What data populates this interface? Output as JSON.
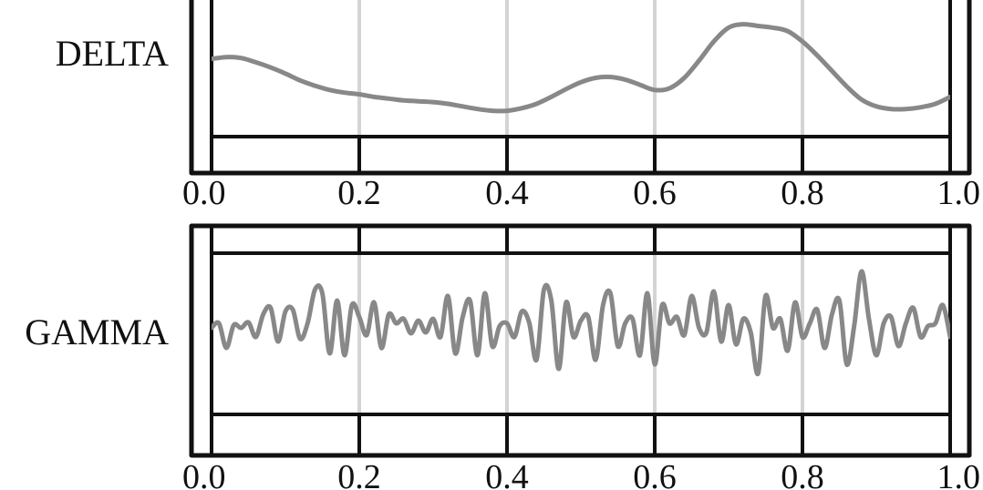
{
  "chart_data": [
    {
      "type": "line",
      "ylabel": "DELTA",
      "xlim": [
        0.0,
        1.0
      ],
      "x_ticks": [
        "0.0",
        "0.2",
        "0.4",
        "0.6",
        "0.8",
        "1.0"
      ],
      "grid": "vertical",
      "series": [
        {
          "color": "#888888",
          "x": [
            0.0,
            0.02,
            0.04,
            0.06,
            0.08,
            0.1,
            0.12,
            0.14,
            0.16,
            0.18,
            0.2,
            0.22,
            0.24,
            0.26,
            0.28,
            0.3,
            0.32,
            0.34,
            0.36,
            0.38,
            0.4,
            0.42,
            0.44,
            0.46,
            0.48,
            0.5,
            0.52,
            0.54,
            0.56,
            0.58,
            0.6,
            0.62,
            0.64,
            0.66,
            0.68,
            0.7,
            0.72,
            0.74,
            0.76,
            0.78,
            0.8,
            0.82,
            0.84,
            0.86,
            0.88,
            0.9,
            0.92,
            0.94,
            0.96,
            0.98,
            1.0
          ],
          "y": [
            0.72,
            0.74,
            0.73,
            0.68,
            0.62,
            0.55,
            0.47,
            0.41,
            0.36,
            0.33,
            0.31,
            0.28,
            0.26,
            0.24,
            0.23,
            0.22,
            0.2,
            0.17,
            0.14,
            0.12,
            0.12,
            0.15,
            0.2,
            0.28,
            0.37,
            0.45,
            0.5,
            0.51,
            0.48,
            0.42,
            0.36,
            0.38,
            0.5,
            0.7,
            0.92,
            1.08,
            1.12,
            1.1,
            1.08,
            1.04,
            0.92,
            0.76,
            0.58,
            0.4,
            0.25,
            0.17,
            0.14,
            0.14,
            0.16,
            0.2,
            0.28
          ]
        }
      ]
    },
    {
      "type": "line",
      "ylabel": "GAMMA",
      "xlim": [
        0.0,
        1.0
      ],
      "x_ticks": [
        "0.0",
        "0.2",
        "0.4",
        "0.6",
        "0.8",
        "1.0"
      ],
      "grid": "vertical",
      "series": [
        {
          "color": "#888888",
          "x": [
            0.0,
            0.01,
            0.02,
            0.03,
            0.04,
            0.05,
            0.06,
            0.07,
            0.08,
            0.09,
            0.1,
            0.11,
            0.12,
            0.13,
            0.14,
            0.15,
            0.16,
            0.17,
            0.18,
            0.19,
            0.2,
            0.21,
            0.22,
            0.23,
            0.24,
            0.25,
            0.26,
            0.27,
            0.28,
            0.29,
            0.3,
            0.31,
            0.32,
            0.33,
            0.34,
            0.35,
            0.36,
            0.37,
            0.38,
            0.39,
            0.4,
            0.41,
            0.42,
            0.43,
            0.44,
            0.45,
            0.46,
            0.47,
            0.48,
            0.49,
            0.5,
            0.51,
            0.52,
            0.53,
            0.54,
            0.55,
            0.56,
            0.57,
            0.58,
            0.59,
            0.6,
            0.61,
            0.62,
            0.63,
            0.64,
            0.65,
            0.66,
            0.67,
            0.68,
            0.69,
            0.7,
            0.71,
            0.72,
            0.73,
            0.74,
            0.75,
            0.76,
            0.77,
            0.78,
            0.79,
            0.8,
            0.81,
            0.82,
            0.83,
            0.84,
            0.85,
            0.86,
            0.87,
            0.88,
            0.89,
            0.9,
            0.91,
            0.92,
            0.93,
            0.94,
            0.95,
            0.96,
            0.97,
            0.98,
            0.99,
            1.0
          ],
          "y": [
            0.0,
            0.05,
            -0.22,
            0.03,
            0.0,
            0.06,
            -0.1,
            0.15,
            0.22,
            -0.15,
            0.18,
            0.2,
            -0.12,
            0.05,
            0.42,
            0.38,
            -0.28,
            0.3,
            -0.3,
            0.25,
            0.12,
            -0.08,
            0.28,
            -0.22,
            0.15,
            0.05,
            0.1,
            -0.06,
            0.08,
            -0.05,
            0.1,
            -0.1,
            0.35,
            -0.28,
            0.12,
            0.3,
            -0.3,
            0.38,
            -0.2,
            0.02,
            0.05,
            -0.1,
            0.18,
            0.06,
            -0.35,
            0.42,
            0.3,
            -0.45,
            0.28,
            -0.1,
            0.08,
            0.12,
            -0.35,
            0.25,
            0.38,
            -0.2,
            0.05,
            0.1,
            -0.3,
            0.38,
            -0.4,
            0.25,
            0.05,
            0.12,
            -0.08,
            0.35,
            0.0,
            -0.05,
            0.4,
            -0.15,
            0.25,
            -0.18,
            0.1,
            -0.05,
            -0.5,
            0.35,
            0.0,
            0.1,
            -0.25,
            0.28,
            -0.1,
            0.05,
            0.2,
            -0.22,
            0.15,
            0.3,
            -0.4,
            0.02,
            0.62,
            0.1,
            -0.3,
            0.05,
            0.12,
            -0.2,
            0.05,
            0.22,
            -0.1,
            0.02,
            0.05,
            0.25,
            -0.1
          ]
        }
      ]
    }
  ]
}
